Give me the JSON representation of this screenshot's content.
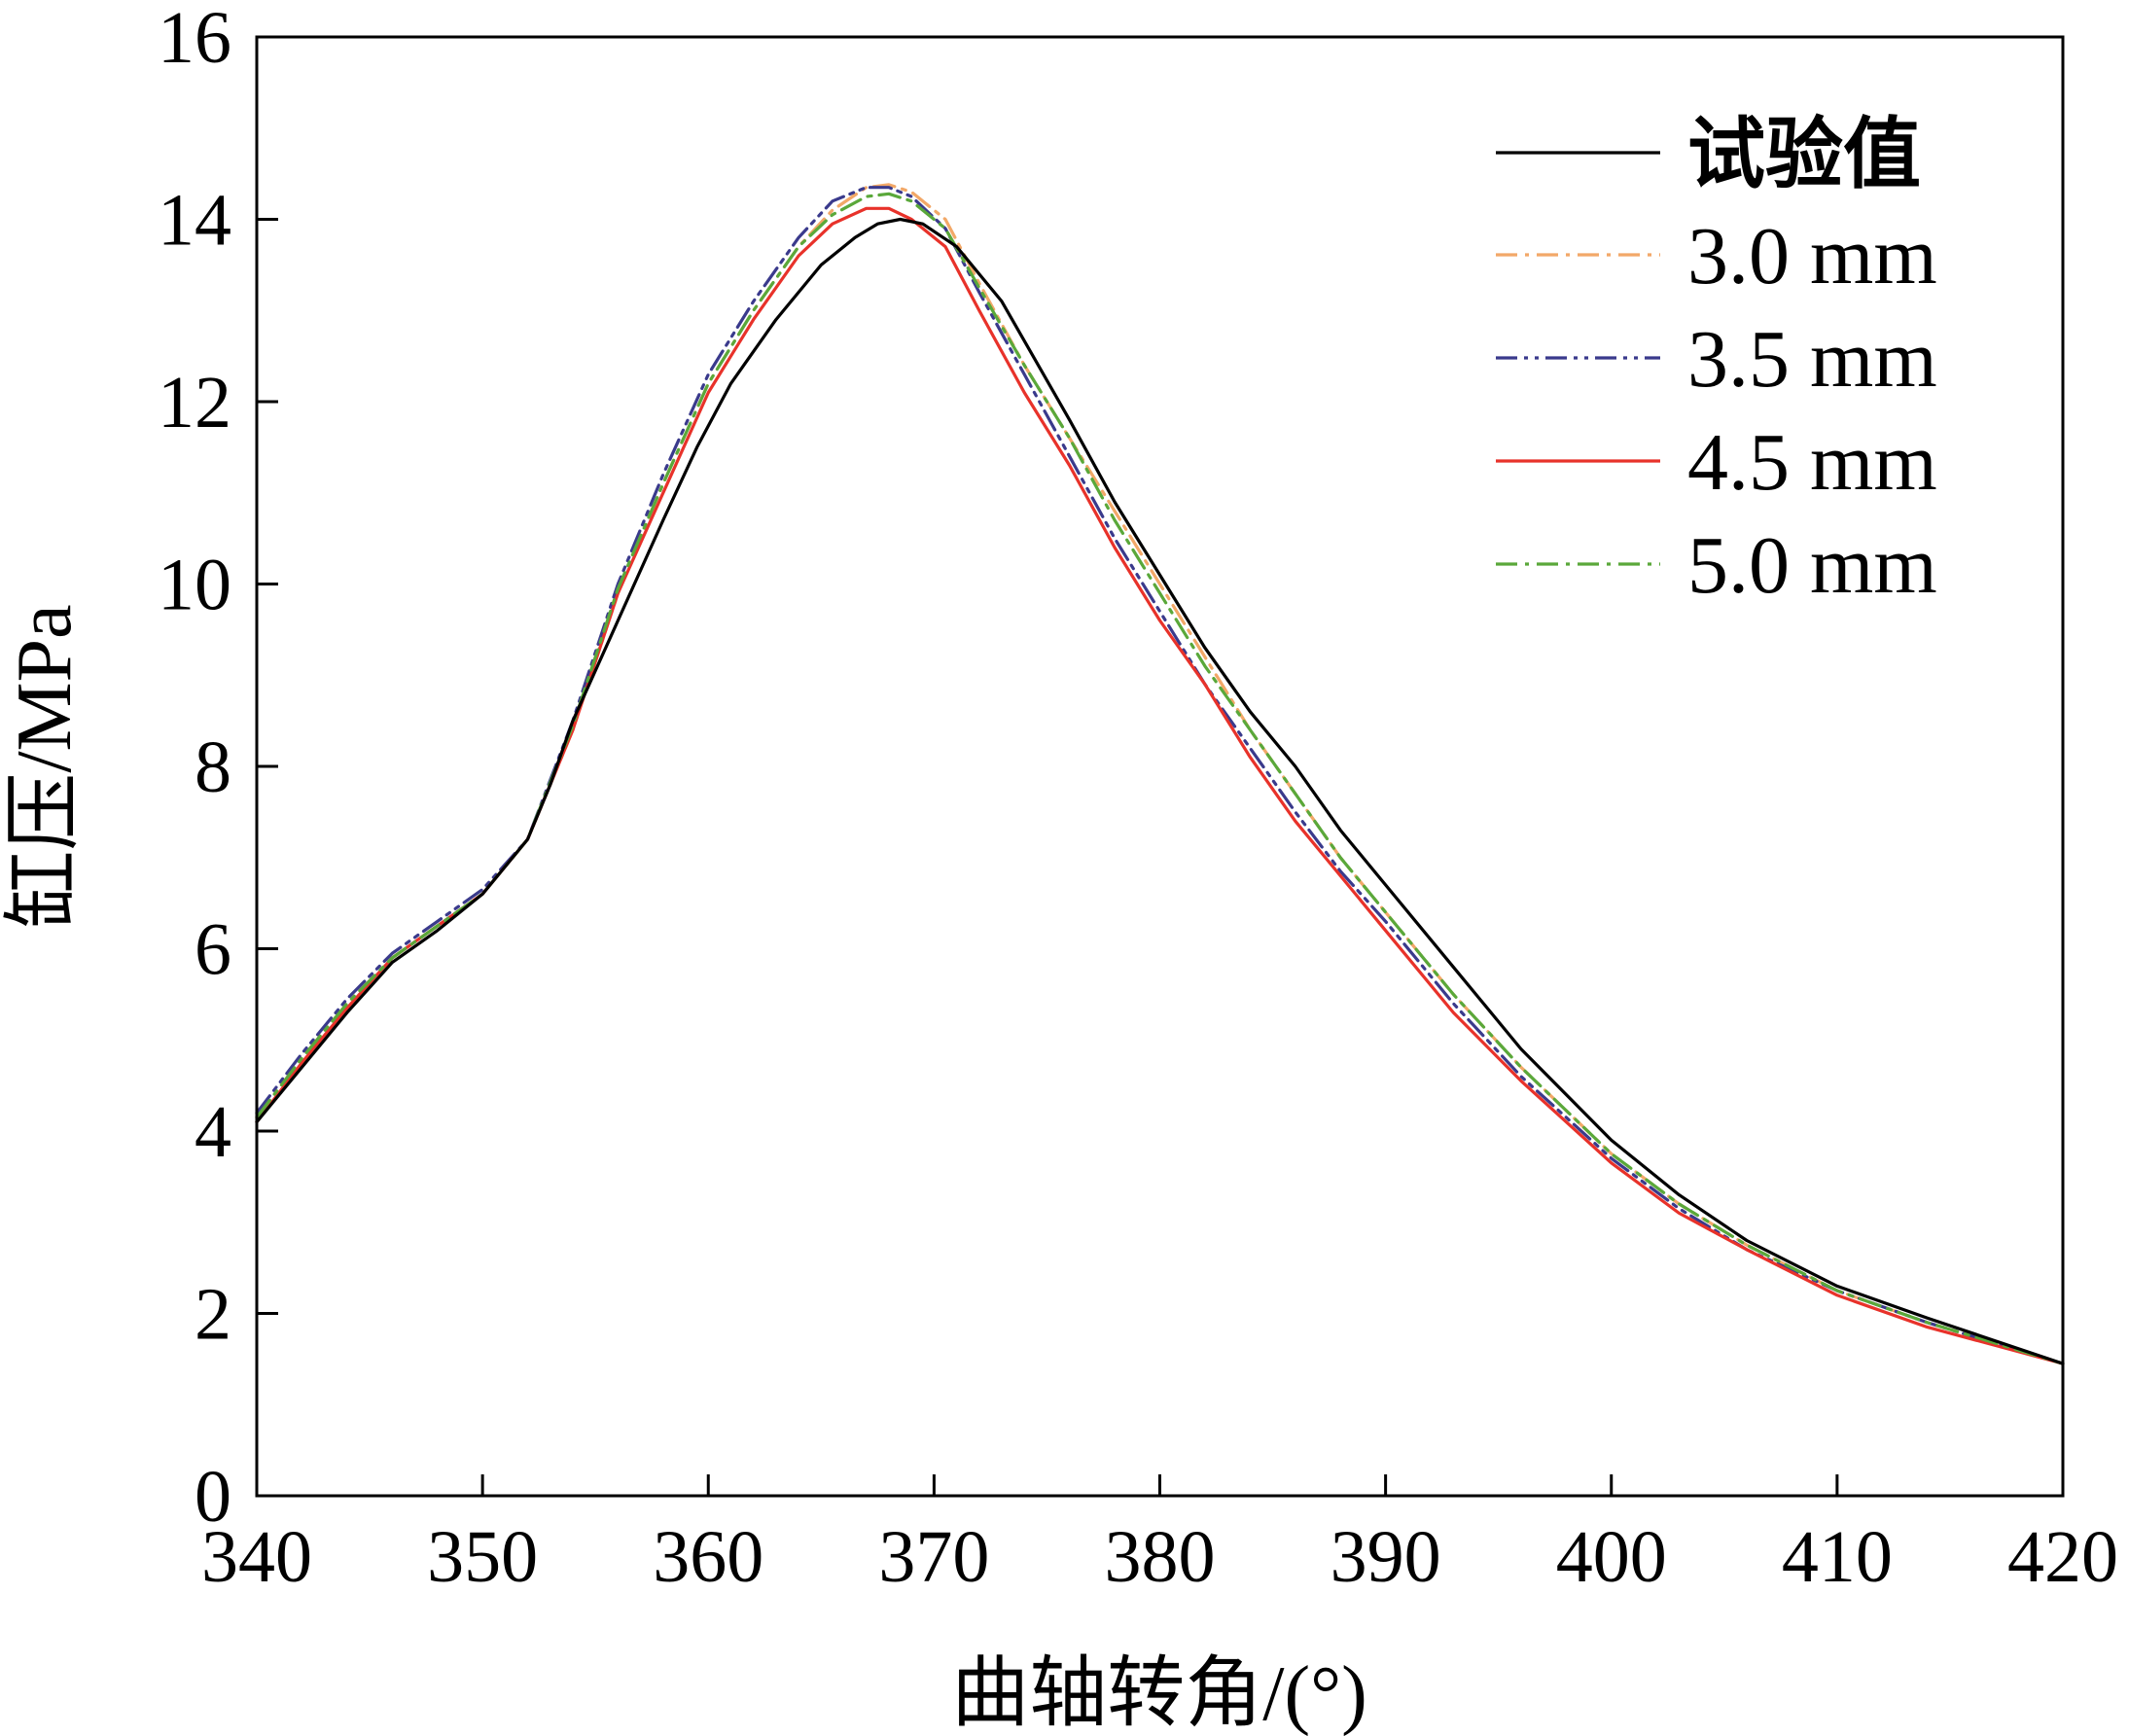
{
  "chart_data": {
    "type": "line",
    "title": "",
    "xlabel": "曲轴转角/(°)",
    "ylabel": "缸压/MPa",
    "xlim": [
      340,
      420
    ],
    "ylim": [
      0,
      16
    ],
    "xticks": [
      340,
      350,
      360,
      370,
      380,
      390,
      400,
      410,
      420
    ],
    "yticks": [
      0,
      2,
      4,
      6,
      8,
      10,
      12,
      14,
      16
    ],
    "grid": false,
    "legend_position": "top-right",
    "series": [
      {
        "name": "试验值",
        "color": "#000000",
        "dash": "solid",
        "x": [
          340,
          342,
          344,
          346,
          348,
          350,
          352,
          353,
          354,
          356,
          358,
          359.5,
          361,
          363,
          365,
          366.5,
          367.5,
          368.5,
          369.5,
          371,
          373,
          376,
          378,
          380,
          382,
          384,
          386,
          388,
          390,
          393,
          396,
          400,
          403,
          406,
          410,
          414,
          420
        ],
        "y": [
          4.1,
          4.7,
          5.3,
          5.85,
          6.2,
          6.6,
          7.2,
          7.8,
          8.5,
          9.6,
          10.7,
          11.5,
          12.2,
          12.9,
          13.5,
          13.8,
          13.95,
          14.0,
          13.95,
          13.7,
          13.1,
          11.8,
          10.9,
          10.1,
          9.3,
          8.6,
          8.0,
          7.3,
          6.7,
          5.8,
          4.9,
          3.9,
          3.3,
          2.8,
          2.3,
          1.95,
          1.45
        ]
      },
      {
        "name": "3.0 mm",
        "color": "#f2a868",
        "dash": "dashdot",
        "x": [
          340,
          342,
          344,
          346,
          348,
          350,
          352,
          354,
          356,
          358,
          360,
          362,
          364,
          365.5,
          367,
          368,
          369,
          370.5,
          372,
          374,
          376,
          378,
          380,
          382,
          384,
          386,
          388,
          390,
          393,
          396,
          400,
          403,
          406,
          410,
          414,
          420
        ],
        "y": [
          4.15,
          4.8,
          5.4,
          5.9,
          6.25,
          6.6,
          7.2,
          8.4,
          9.9,
          11.1,
          12.2,
          13.0,
          13.7,
          14.1,
          14.35,
          14.38,
          14.3,
          14.0,
          13.3,
          12.4,
          11.6,
          10.8,
          10.0,
          9.2,
          8.4,
          7.7,
          7.0,
          6.4,
          5.5,
          4.7,
          3.75,
          3.2,
          2.75,
          2.25,
          1.9,
          1.45
        ]
      },
      {
        "name": "3.5 mm",
        "color": "#3a3a8c",
        "dash": "dashdotdot",
        "x": [
          340,
          342,
          344,
          346,
          348,
          350,
          352,
          354,
          356,
          358,
          360,
          362,
          364,
          365.5,
          367,
          368,
          369,
          370.5,
          372,
          374,
          376,
          378,
          380,
          382,
          384,
          386,
          388,
          390,
          393,
          396,
          400,
          403,
          406,
          410,
          414,
          420
        ],
        "y": [
          4.2,
          4.85,
          5.45,
          5.95,
          6.3,
          6.65,
          7.2,
          8.5,
          10.0,
          11.2,
          12.3,
          13.1,
          13.8,
          14.2,
          14.35,
          14.35,
          14.25,
          13.9,
          13.2,
          12.3,
          11.4,
          10.5,
          9.7,
          8.9,
          8.2,
          7.5,
          6.85,
          6.3,
          5.4,
          4.6,
          3.7,
          3.15,
          2.7,
          2.25,
          1.9,
          1.45
        ]
      },
      {
        "name": "4.5 mm",
        "color": "#e8322a",
        "dash": "solid",
        "x": [
          340,
          342,
          344,
          346,
          348,
          350,
          352,
          354,
          356,
          358,
          360,
          362,
          364,
          365.5,
          367,
          368,
          369,
          370.5,
          372,
          374,
          376,
          378,
          380,
          382,
          384,
          386,
          388,
          390,
          393,
          396,
          400,
          403,
          406,
          410,
          414,
          420
        ],
        "y": [
          4.1,
          4.75,
          5.35,
          5.9,
          6.25,
          6.6,
          7.2,
          8.4,
          9.9,
          11.0,
          12.1,
          12.9,
          13.6,
          13.95,
          14.12,
          14.12,
          14.0,
          13.7,
          13.0,
          12.1,
          11.3,
          10.4,
          9.6,
          8.9,
          8.1,
          7.4,
          6.8,
          6.2,
          5.3,
          4.55,
          3.65,
          3.1,
          2.7,
          2.2,
          1.85,
          1.45
        ]
      },
      {
        "name": "5.0 mm",
        "color": "#5aa83a",
        "dash": "dashdot",
        "x": [
          340,
          342,
          344,
          346,
          348,
          350,
          352,
          354,
          356,
          358,
          360,
          362,
          364,
          365.5,
          367,
          368,
          369,
          370.5,
          372,
          374,
          376,
          378,
          380,
          382,
          384,
          386,
          388,
          390,
          393,
          396,
          400,
          403,
          406,
          410,
          414,
          420
        ],
        "y": [
          4.15,
          4.8,
          5.4,
          5.9,
          6.25,
          6.6,
          7.2,
          8.45,
          9.95,
          11.1,
          12.2,
          13.0,
          13.7,
          14.05,
          14.25,
          14.28,
          14.2,
          13.9,
          13.25,
          12.4,
          11.6,
          10.7,
          9.9,
          9.1,
          8.4,
          7.7,
          7.0,
          6.4,
          5.5,
          4.7,
          3.75,
          3.2,
          2.75,
          2.25,
          1.9,
          1.45
        ]
      }
    ]
  }
}
